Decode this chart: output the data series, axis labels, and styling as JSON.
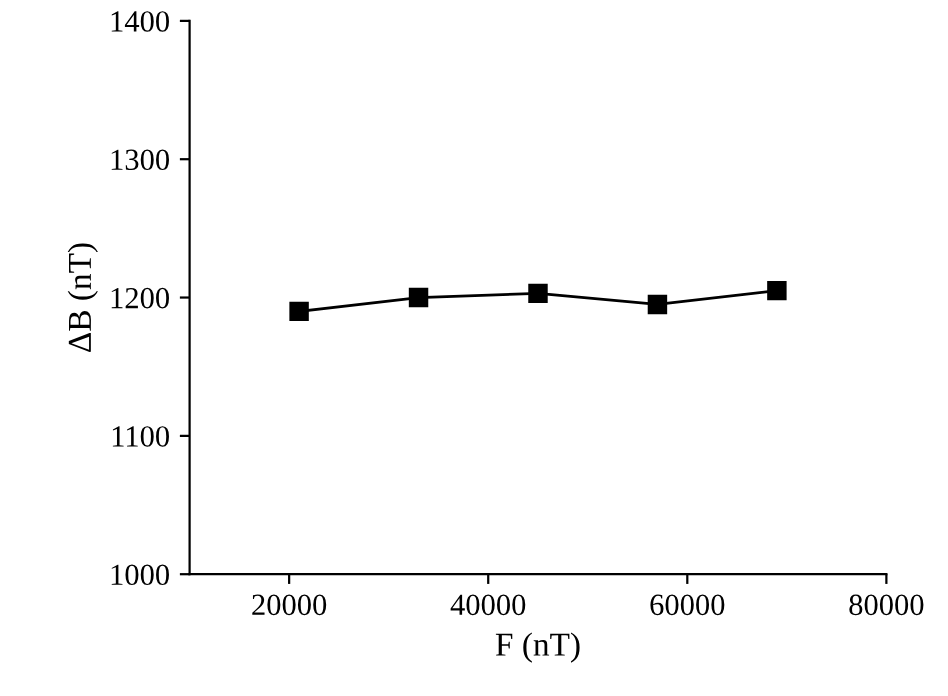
{
  "chart_data": {
    "type": "line",
    "xlabel": "F (nT)",
    "ylabel": "ΔB (nT)",
    "x": [
      21000,
      33000,
      45000,
      57000,
      69000
    ],
    "series": [
      {
        "color": "#000000",
        "values": [
          1190,
          1200,
          1203,
          1195,
          1205
        ]
      }
    ],
    "xlim": [
      10000,
      80000
    ],
    "xticks": [
      20000,
      40000,
      60000,
      80000
    ],
    "ylim": [
      1000,
      1400
    ],
    "yticks": [
      1000,
      1100,
      1200,
      1300,
      1400
    ],
    "marker": "square",
    "line_style": "solid",
    "grid": false
  }
}
